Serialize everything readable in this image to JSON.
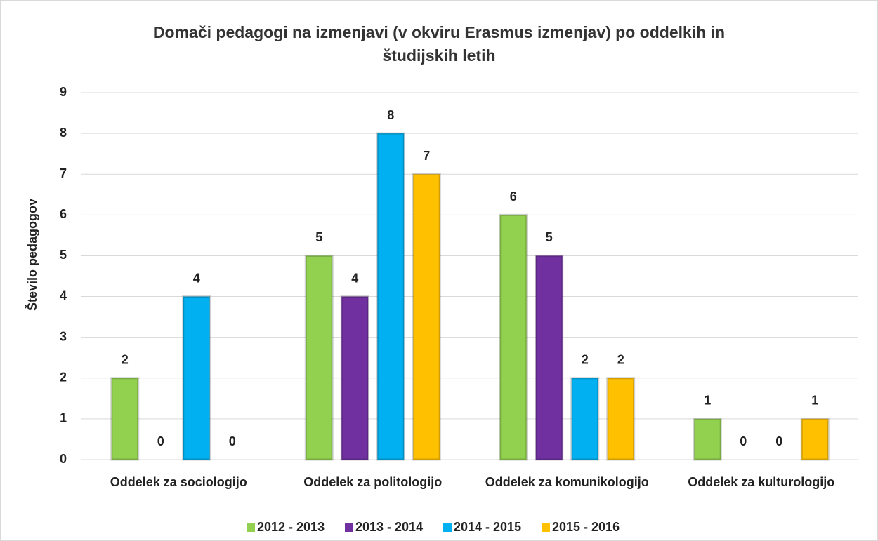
{
  "chart_data": {
    "type": "bar",
    "title": "Domači pedagogi na izmenjavi (v okviru Erasmus izmenjav) po oddelkih in študijskih letih",
    "y_label": "Število pedagogov",
    "categories": [
      "Oddelek za sociologijo",
      "Oddelek za politologijo",
      "Oddelek za komunikologijo",
      "Oddelek za kulturologijo"
    ],
    "series": [
      {
        "name": "2012 - 2013",
        "color": "#92d050",
        "values": [
          2,
          5,
          6,
          1
        ]
      },
      {
        "name": "2013 - 2014",
        "color": "#7030a0",
        "values": [
          0,
          4,
          5,
          0
        ]
      },
      {
        "name": "2014 - 2015",
        "color": "#00b0f0",
        "values": [
          4,
          8,
          2,
          0
        ]
      },
      {
        "name": "2015 - 2016",
        "color": "#ffc000",
        "values": [
          0,
          7,
          2,
          1
        ]
      }
    ],
    "ylim": [
      0,
      9
    ],
    "yticks": [
      0,
      1,
      2,
      3,
      4,
      5,
      6,
      7,
      8,
      9
    ],
    "grid": true,
    "legend": "bottom"
  }
}
